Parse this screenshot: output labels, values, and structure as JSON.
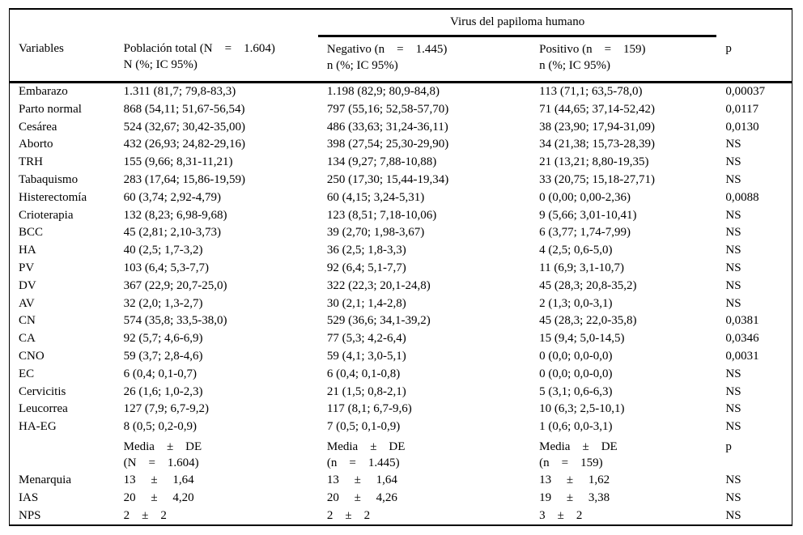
{
  "table": {
    "spanner": "Virus del papiloma humano",
    "headers": {
      "variable": "Variables",
      "total": "Población total (N    =    1.604)\nN (%; IC 95%)",
      "negativo": "Negativo (n    =    1.445)\nn (%; IC 95%)",
      "positivo": "Positivo (n    =    159)\nn (%; IC 95%)",
      "p": "p"
    },
    "rows": [
      {
        "variable": "Embarazo",
        "total": "1.311 (81,7; 79,8-83,3)",
        "negativo": "1.198 (82,9; 80,9-84,8)",
        "positivo": "113 (71,1; 63,5-78,0)",
        "p": "0,00037"
      },
      {
        "variable": "Parto normal",
        "total": "868 (54,11; 51,67-56,54)",
        "negativo": "797 (55,16; 52,58-57,70)",
        "positivo": "71 (44,65; 37,14-52,42)",
        "p": "0,0117"
      },
      {
        "variable": "Cesárea",
        "total": "524 (32,67; 30,42-35,00)",
        "negativo": "486 (33,63; 31,24-36,11)",
        "positivo": "38 (23,90; 17,94-31,09)",
        "p": "0,0130"
      },
      {
        "variable": "Aborto",
        "total": "432 (26,93; 24,82-29,16)",
        "negativo": "398 (27,54; 25,30-29,90)",
        "positivo": "34 (21,38; 15,73-28,39)",
        "p": "NS"
      },
      {
        "variable": "TRH",
        "total": "155 (9,66; 8,31-11,21)",
        "negativo": "134 (9,27; 7,88-10,88)",
        "positivo": "21 (13,21; 8,80-19,35)",
        "p": "NS"
      },
      {
        "variable": "Tabaquismo",
        "total": "283 (17,64; 15,86-19,59)",
        "negativo": "250 (17,30; 15,44-19,34)",
        "positivo": "33 (20,75; 15,18-27,71)",
        "p": "NS"
      },
      {
        "variable": "Histerectomía",
        "total": "60 (3,74; 2,92-4,79)",
        "negativo": "60 (4,15; 3,24-5,31)",
        "positivo": "0 (0,00; 0,00-2,36)",
        "p": "0,0088"
      },
      {
        "variable": "Crioterapia",
        "total": "132 (8,23; 6,98-9,68)",
        "negativo": "123 (8,51; 7,18-10,06)",
        "positivo": "9 (5,66; 3,01-10,41)",
        "p": "NS"
      },
      {
        "variable": "BCC",
        "total": "45 (2,81; 2,10-3,73)",
        "negativo": "39 (2,70; 1,98-3,67)",
        "positivo": "6 (3,77; 1,74-7,99)",
        "p": "NS"
      },
      {
        "variable": "HA",
        "total": "40 (2,5; 1,7-3,2)",
        "negativo": "36 (2,5; 1,8-3,3)",
        "positivo": "4 (2,5; 0,6-5,0)",
        "p": "NS"
      },
      {
        "variable": "PV",
        "total": "103 (6,4; 5,3-7,7)",
        "negativo": "92 (6,4; 5,1-7,7)",
        "positivo": "11 (6,9; 3,1-10,7)",
        "p": "NS"
      },
      {
        "variable": "DV",
        "total": "367 (22,9; 20,7-25,0)",
        "negativo": "322 (22,3; 20,1-24,8)",
        "positivo": "45 (28,3; 20,8-35,2)",
        "p": "NS"
      },
      {
        "variable": "AV",
        "total": "32 (2,0; 1,3-2,7)",
        "negativo": "30 (2,1; 1,4-2,8)",
        "positivo": "2 (1,3; 0,0-3,1)",
        "p": "NS"
      },
      {
        "variable": "CN",
        "total": "574 (35,8; 33,5-38,0)",
        "negativo": "529 (36,6; 34,1-39,2)",
        "positivo": "45 (28,3; 22,0-35,8)",
        "p": "0,0381"
      },
      {
        "variable": "CA",
        "total": "92 (5,7; 4,6-6,9)",
        "negativo": "77 (5,3; 4,2-6,4)",
        "positivo": "15 (9,4; 5,0-14,5)",
        "p": "0,0346"
      },
      {
        "variable": "CNO",
        "total": "59 (3,7; 2,8-4,6)",
        "negativo": "59 (4,1; 3,0-5,1)",
        "positivo": "0 (0,0; 0,0-0,0)",
        "p": "0,0031"
      },
      {
        "variable": "EC",
        "total": "6 (0,4; 0,1-0,7)",
        "negativo": "6 (0,4; 0,1-0,8)",
        "positivo": "0 (0,0; 0,0-0,0)",
        "p": "NS"
      },
      {
        "variable": "Cervicitis",
        "total": "26 (1,6; 1,0-2,3)",
        "negativo": "21 (1,5; 0,8-2,1)",
        "positivo": "5 (3,1; 0,6-6,3)",
        "p": "NS"
      },
      {
        "variable": "Leucorrea",
        "total": "127 (7,9; 6,7-9,2)",
        "negativo": "117 (8,1; 6,7-9,6)",
        "positivo": "10 (6,3; 2,5-10,1)",
        "p": "NS"
      },
      {
        "variable": "HA-EG",
        "total": "8 (0,5; 0,2-0,9)",
        "negativo": "7 (0,5; 0,1-0,9)",
        "positivo": "1 (0,6; 0,0-3,1)",
        "p": "NS"
      }
    ],
    "subheader": {
      "total": "Media    ±    DE\n(N    =    1.604)",
      "negativo": "Media    ±    DE\n(n    =    1.445)",
      "positivo": "Media    ±    DE\n(n    =    159)",
      "p": "p"
    },
    "mean_rows": [
      {
        "variable": "Menarquia",
        "total": "13     ±     1,64",
        "negativo": "13     ±     1,64",
        "positivo": "13     ±     1,62",
        "p": "NS"
      },
      {
        "variable": "IAS",
        "total": "20     ±     4,20",
        "negativo": "20     ±     4,26",
        "positivo": "19     ±     3,38",
        "p": "NS"
      },
      {
        "variable": "NPS",
        "total": "2    ±    2",
        "negativo": "2    ±    2",
        "positivo": "3    ±    2",
        "p": "NS"
      }
    ]
  }
}
